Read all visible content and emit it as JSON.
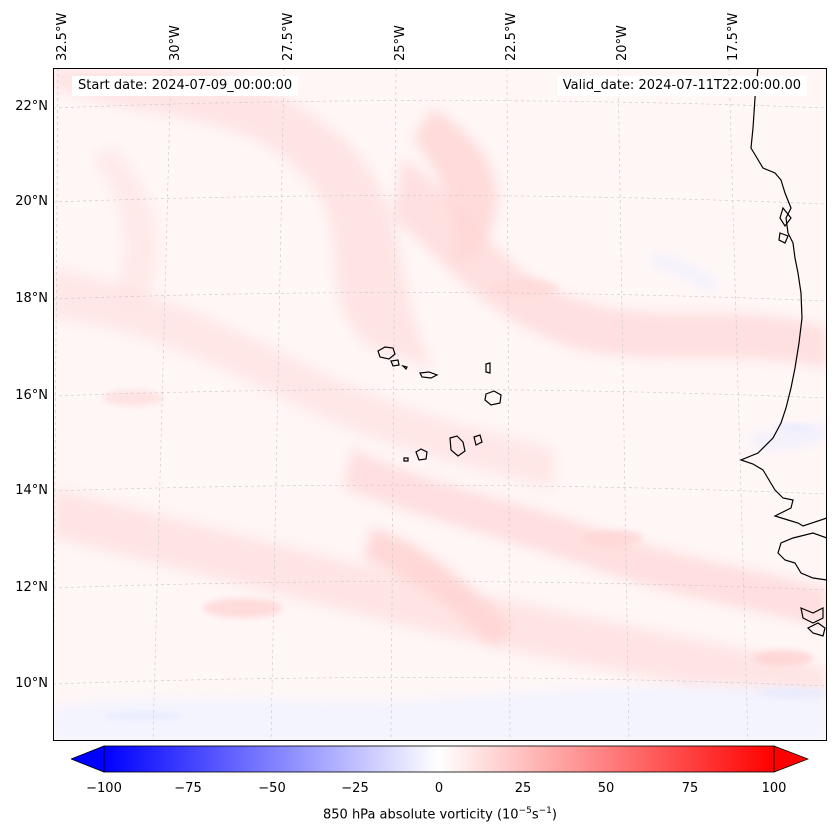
{
  "map": {
    "start_date": "Start date: 2024-07-09_00:00:00",
    "valid_date": "Valid_date: 2024-07-11T22:00:00.00",
    "lon_labels": [
      "32.5°W",
      "30°W",
      "27.5°W",
      "25°W",
      "22.5°W",
      "20°W",
      "17.5°W"
    ],
    "lat_labels": [
      "22°N",
      "20°N",
      "18°N",
      "16°N",
      "14°N",
      "12°N",
      "10°N"
    ],
    "field": "850 hPa absolute vorticity",
    "colors": {
      "positive": "#ff0000",
      "negative": "#0000ff",
      "neutral": "#ffffff",
      "coastline": "#000000"
    }
  },
  "colorbar": {
    "ticks": [
      "−100",
      "−75",
      "−50",
      "−25",
      "0",
      "25",
      "50",
      "75",
      "100"
    ],
    "range": [
      -100,
      100
    ],
    "label_prefix": "850 hPa absolute vorticity (10",
    "label_exp1": "−5",
    "label_mid": "s",
    "label_exp2": "−1",
    "label_suffix": ")"
  }
}
